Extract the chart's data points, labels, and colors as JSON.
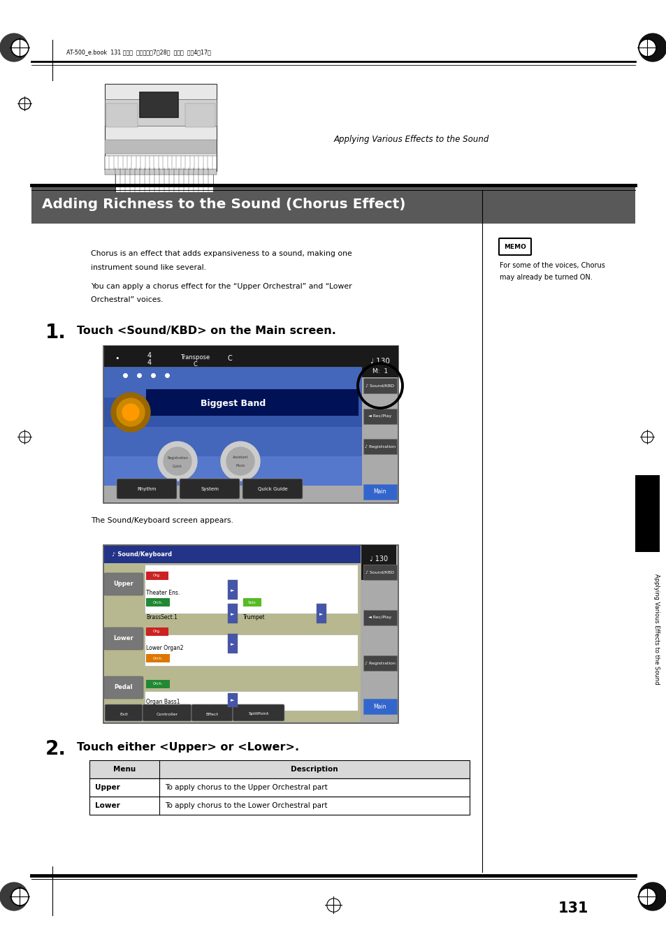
{
  "page_bg": "#ffffff",
  "page_width": 9.54,
  "page_height": 13.51,
  "header_text": "AT-500_e.book  131 ページ  ２００８年7月28日  月曜日  午後4時17分",
  "section_header_bg": "#595959",
  "section_header_text": "Adding Richness to the Sound (Chorus Effect)",
  "section_header_color": "#ffffff",
  "right_header_text": "Applying Various Effects to the Sound",
  "body_text_1a": "Chorus is an effect that adds expansiveness to a sound, making one",
  "body_text_1b": "instrument sound like several.",
  "body_text_2a": "You can apply a chorus effect for the “Upper Orchestral” and “Lower",
  "body_text_2b": "Orchestral” voices.",
  "memo_text_1": "For some of the voices, Chorus",
  "memo_text_2": "may already be turned ON.",
  "step1_num": "1.",
  "step1_text": "Touch <Sound/KBD> on the Main screen.",
  "step1_sub": "The Sound/Keyboard screen appears.",
  "step2_num": "2.",
  "step2_text": "Touch either <Upper> or <Lower>.",
  "table_header_menu": "Menu",
  "table_header_desc": "Description",
  "table_row1": [
    "Upper",
    "To apply chorus to the Upper Orchestral part"
  ],
  "table_row2": [
    "Lower",
    "To apply chorus to the Lower Orchestral part"
  ],
  "sidebar_text": "Applying Various Effects to the Sound",
  "page_number": "131"
}
